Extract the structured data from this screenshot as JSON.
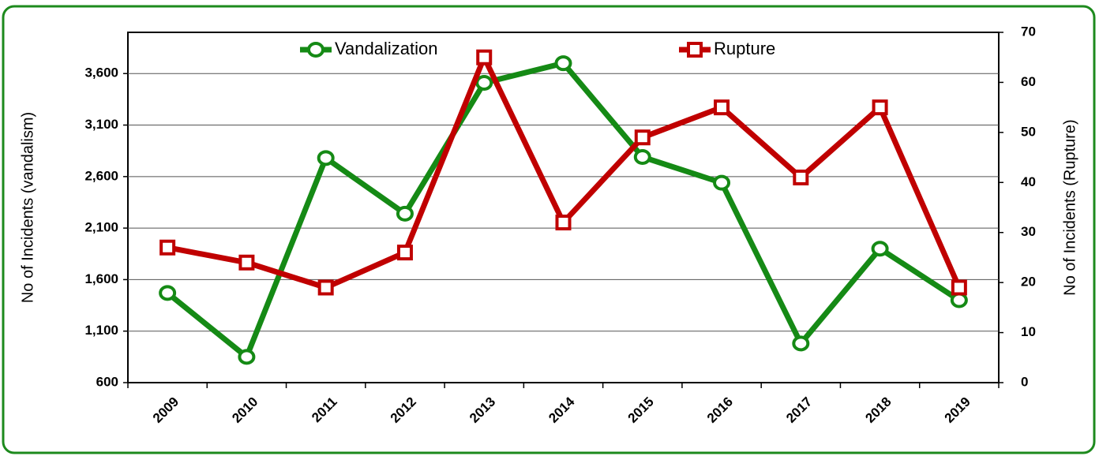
{
  "chart_data": {
    "type": "line",
    "categories": [
      "2009",
      "2010",
      "2011",
      "2012",
      "2013",
      "2014",
      "2015",
      "2016",
      "2017",
      "2018",
      "2019"
    ],
    "series": [
      {
        "name": "Vandalization",
        "color": "#158a15",
        "values": [
          1470,
          850,
          2780,
          2240,
          3510,
          3700,
          2790,
          2540,
          980,
          1900,
          1400
        ]
      },
      {
        "name": "Rupture",
        "color": "#c00000",
        "axis": "y2",
        "values": [
          27,
          24,
          19,
          26,
          65,
          32,
          49,
          55,
          41,
          55,
          19
        ]
      }
    ],
    "y_label": "No of Incidents (vandalism)",
    "y2_label": "No of Incidents (Rupture)",
    "ylim": [
      600,
      4000
    ],
    "yticks": [
      600,
      {
        "value": 1100,
        "label": "1,100"
      },
      {
        "value": 1600,
        "label": "1,600"
      },
      {
        "value": 2100,
        "label": "2,100"
      },
      {
        "value": 2600,
        "label": "2,600"
      },
      {
        "value": 3100,
        "label": "3,100"
      },
      {
        "value": 3600,
        "label": "3,600"
      }
    ],
    "y2lim": [
      0,
      70
    ],
    "y2ticks": [
      0,
      10,
      20,
      30,
      40,
      50,
      60,
      70
    ],
    "grid": true,
    "legend": "top"
  }
}
